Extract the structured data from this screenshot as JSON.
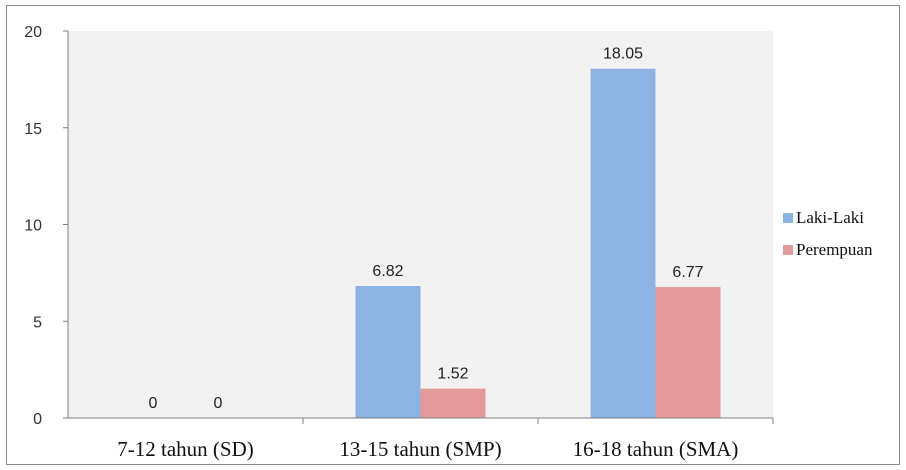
{
  "chart_data": {
    "type": "bar",
    "categories": [
      "7-12 tahun (SD)",
      "13-15 tahun (SMP)",
      "16-18 tahun (SMA)"
    ],
    "series": [
      {
        "name": "Laki-Laki",
        "values": [
          0,
          6.82,
          18.05
        ],
        "labels": [
          "0",
          "6.82",
          "18.05"
        ],
        "color": "#8db3e2"
      },
      {
        "name": "Perempuan",
        "values": [
          0,
          1.52,
          6.77
        ],
        "labels": [
          "0",
          "1.52",
          "6.77"
        ],
        "color": "#e39a9a"
      }
    ],
    "yticks": [
      "0",
      "5",
      "10",
      "15",
      "20"
    ],
    "ylim": [
      0,
      20
    ],
    "grid": false,
    "legend_position": "right",
    "plot_background": "#f2f2f2",
    "title": "",
    "xlabel": "",
    "ylabel": ""
  }
}
